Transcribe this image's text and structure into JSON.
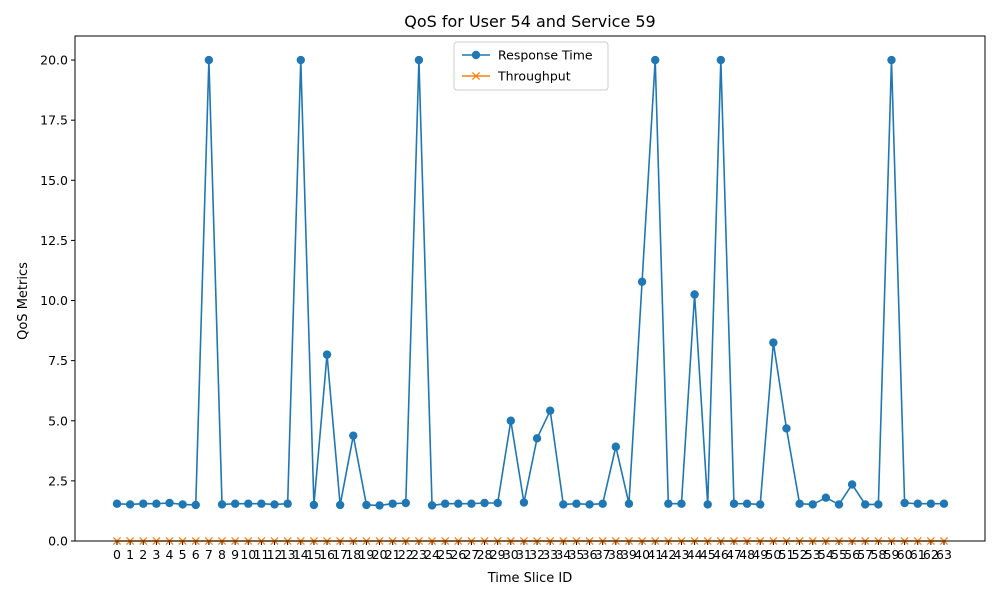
{
  "chart_data": {
    "type": "line",
    "title": "QoS for User 54 and Service 59",
    "xlabel": "Time Slice ID",
    "ylabel": "QoS Metrics",
    "ylim": [
      0,
      21
    ],
    "yticks": [
      0.0,
      2.5,
      5.0,
      7.5,
      10.0,
      12.5,
      15.0,
      17.5,
      20.0
    ],
    "ytick_labels": [
      "0.0",
      "2.5",
      "5.0",
      "7.5",
      "10.0",
      "12.5",
      "15.0",
      "17.5",
      "20.0"
    ],
    "grid": false,
    "legend_position": "top-center",
    "x": [
      0,
      1,
      2,
      3,
      4,
      5,
      6,
      7,
      8,
      9,
      10,
      11,
      12,
      13,
      14,
      15,
      16,
      17,
      18,
      19,
      20,
      21,
      22,
      23,
      24,
      25,
      26,
      27,
      28,
      29,
      30,
      31,
      32,
      33,
      34,
      35,
      36,
      37,
      38,
      39,
      40,
      41,
      42,
      43,
      44,
      45,
      46,
      47,
      48,
      49,
      50,
      51,
      52,
      53,
      54,
      55,
      56,
      57,
      58,
      59,
      60,
      61,
      62,
      63
    ],
    "series": [
      {
        "name": "Response Time",
        "color": "#1f77b4",
        "marker": "circle",
        "values": [
          1.55,
          1.52,
          1.55,
          1.55,
          1.58,
          1.52,
          1.5,
          20.0,
          1.52,
          1.55,
          1.55,
          1.55,
          1.52,
          1.55,
          20.0,
          1.5,
          7.75,
          1.5,
          4.38,
          1.5,
          1.48,
          1.55,
          1.58,
          20.0,
          1.48,
          1.55,
          1.55,
          1.55,
          1.58,
          1.58,
          5.0,
          1.6,
          4.27,
          5.42,
          1.52,
          1.55,
          1.52,
          1.55,
          3.92,
          1.55,
          10.78,
          20.0,
          1.55,
          1.55,
          10.25,
          1.52,
          20.0,
          1.55,
          1.55,
          1.52,
          8.25,
          4.68,
          1.55,
          1.52,
          1.8,
          1.52,
          2.35,
          1.52,
          1.52,
          20.0,
          1.58,
          1.55,
          1.55,
          1.55
        ]
      },
      {
        "name": "Throughput",
        "color": "#ff7f0e",
        "marker": "x",
        "values": [
          0,
          0,
          0,
          0,
          0,
          0,
          0,
          0,
          0,
          0,
          0,
          0,
          0,
          0,
          0,
          0,
          0,
          0,
          0,
          0,
          0,
          0,
          0,
          0,
          0,
          0,
          0,
          0,
          0,
          0,
          0,
          0,
          0,
          0,
          0,
          0,
          0,
          0,
          0,
          0,
          0,
          0,
          0,
          0,
          0,
          0,
          0,
          0,
          0,
          0,
          0,
          0,
          0,
          0,
          0,
          0,
          0,
          0,
          0,
          0,
          0,
          0,
          0,
          0
        ]
      }
    ]
  }
}
